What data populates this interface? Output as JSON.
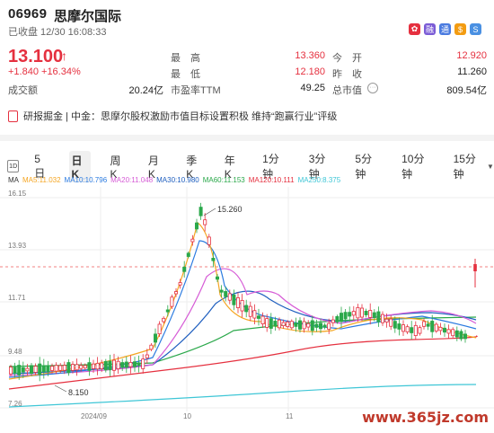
{
  "header": {
    "code": "06969",
    "name": "思摩尔国际",
    "status": "已收盘 12/30 16:08:33",
    "icons": [
      "hk-flag-icon",
      "margin-icon",
      "connect-icon",
      "dollar-icon",
      "s-icon"
    ]
  },
  "quote": {
    "price": "13.100",
    "change": "+1.840",
    "change_pct": "+16.34%",
    "volume_label": "成交额",
    "volume": "20.24亿",
    "high_label": "最　高",
    "high": "13.360",
    "low_label": "最　低",
    "low": "12.180",
    "pe_label": "市盈率TTM",
    "pe": "49.25",
    "open_label": "今　开",
    "open": "12.920",
    "prev_close_label": "昨　收",
    "prev_close": "11.260",
    "mktcap_label": "总市值",
    "mktcap": "809.54亿"
  },
  "research": {
    "text": "研报掘金 | 中金：思摩尔股权激励市值目标设置积极 维持“跑赢行业”评级"
  },
  "tabs": [
    "5日",
    "日K",
    "周K",
    "月K",
    "季K",
    "年K",
    "1分钟",
    "3分钟",
    "5分钟",
    "10分钟",
    "15分钟"
  ],
  "active_tab": "日K",
  "tab_1d": "1D",
  "ma_legend": [
    {
      "label": "MA",
      "color": "#333333"
    },
    {
      "label": "MA5:11.032",
      "color": "#f5a623"
    },
    {
      "label": "MA10:10.796",
      "color": "#2b7be0"
    },
    {
      "label": "MA20:11.048",
      "color": "#d65cd6"
    },
    {
      "label": "MA30:10.980",
      "color": "#1f5fbf"
    },
    {
      "label": "MA60:11.153",
      "color": "#2aa84a"
    },
    {
      "label": "MA120:10.111",
      "color": "#e5303f"
    },
    {
      "label": "MA250:8.375",
      "color": "#3ec6d6"
    }
  ],
  "chart_data": {
    "type": "candlestick",
    "y_ticks": [
      "16.15",
      "13.93",
      "11.71",
      "9.48",
      "7.26"
    ],
    "x_ticks": [
      "2024/09",
      "10",
      "11"
    ],
    "annotations": {
      "high": "15.260",
      "low": "8.150"
    },
    "ylim": [
      7.26,
      16.15
    ],
    "last_close": 13.1
  },
  "watermark": "www.365jz.com"
}
